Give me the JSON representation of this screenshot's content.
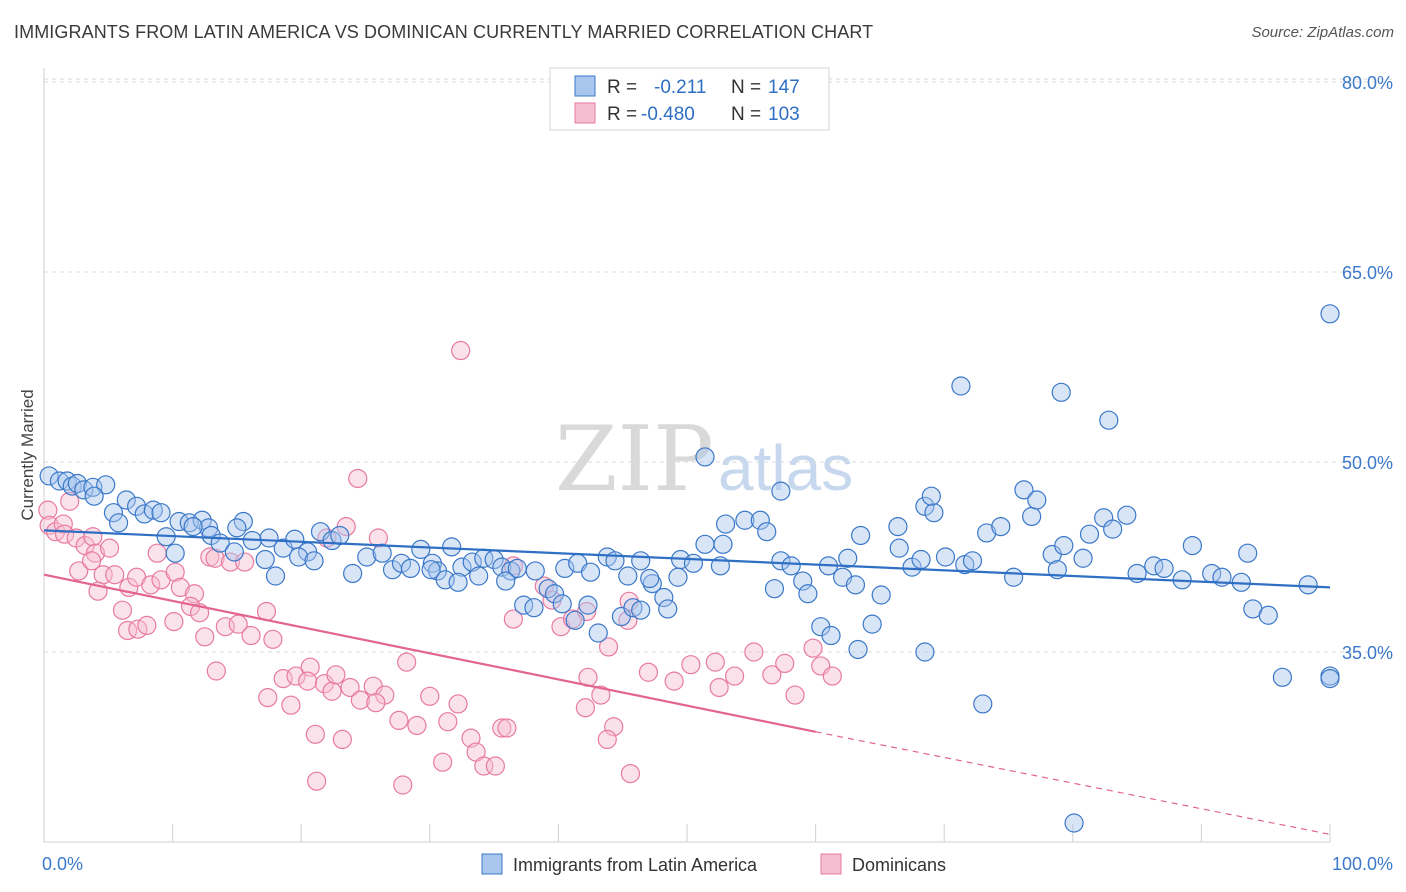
{
  "title": "IMMIGRANTS FROM LATIN AMERICA VS DOMINICAN CURRENTLY MARRIED CORRELATION CHART",
  "source": "Source: ZipAtlas.com",
  "watermark": {
    "zip": "ZIP",
    "atlas": "atlas"
  },
  "colors": {
    "blue_fill": "#a9c6ee",
    "blue_stroke": "#3b78c9",
    "blue_line": "#2f6fc4",
    "pink_fill": "#f6bfd1",
    "pink_stroke": "#e87aa0",
    "pink_line": "#e2648f",
    "grid": "#d8d8d8",
    "tick_text": "#3b78c9"
  },
  "legend": {
    "rows": [
      {
        "r_label": "R =",
        "r_value": "-0.211",
        "n_label": "N =",
        "n_value": "147"
      },
      {
        "r_label": "R =",
        "r_value": "-0.480",
        "n_label": "N =",
        "n_value": "103"
      }
    ]
  },
  "chart_data": {
    "type": "scatter",
    "title": "IMMIGRANTS FROM LATIN AMERICA VS DOMINICAN CURRENTLY MARRIED CORRELATION CHART",
    "xlabel": "",
    "ylabel": "Currently Married",
    "xlim": [
      0,
      100
    ],
    "ylim": [
      21,
      82
    ],
    "x_tick_labels": [
      "0.0%",
      "100.0%"
    ],
    "y_ticks": [
      35,
      50,
      65,
      80
    ],
    "y_tick_labels": [
      "35.0%",
      "50.0%",
      "65.0%",
      "80.0%"
    ],
    "legend_position": "bottom",
    "series": [
      {
        "name": "Immigrants from Latin America",
        "color": "blue",
        "r": -0.211,
        "n": 147,
        "trend": {
          "x0": 0,
          "y0": 44.6,
          "x1": 100,
          "y1": 40.1
        },
        "points": [
          [
            0.4,
            48.9
          ],
          [
            1.2,
            48.5
          ],
          [
            1.8,
            48.5
          ],
          [
            2.2,
            48.1
          ],
          [
            2.6,
            48.3
          ],
          [
            3.1,
            47.8
          ],
          [
            3.8,
            48.0
          ],
          [
            4.8,
            48.2
          ],
          [
            3.9,
            47.3
          ],
          [
            6.4,
            47.0
          ],
          [
            5.4,
            46.0
          ],
          [
            7.2,
            46.5
          ],
          [
            7.8,
            45.9
          ],
          [
            8.5,
            46.2
          ],
          [
            9.1,
            46.0
          ],
          [
            5.8,
            45.2
          ],
          [
            10.5,
            45.3
          ],
          [
            11.3,
            45.2
          ],
          [
            12.3,
            45.4
          ],
          [
            12.8,
            44.8
          ],
          [
            11.6,
            44.9
          ],
          [
            15.5,
            45.3
          ],
          [
            15.0,
            44.8
          ],
          [
            13.0,
            44.2
          ],
          [
            9.5,
            44.1
          ],
          [
            10.2,
            42.8
          ],
          [
            13.7,
            43.6
          ],
          [
            14.8,
            42.9
          ],
          [
            16.2,
            43.8
          ],
          [
            17.5,
            44.0
          ],
          [
            18.6,
            43.2
          ],
          [
            19.5,
            43.9
          ],
          [
            20.5,
            42.9
          ],
          [
            21.5,
            44.5
          ],
          [
            22.4,
            43.8
          ],
          [
            23.0,
            44.2
          ],
          [
            19.8,
            42.5
          ],
          [
            17.2,
            42.3
          ],
          [
            18.0,
            41.0
          ],
          [
            21.0,
            42.2
          ],
          [
            25.1,
            42.5
          ],
          [
            24.0,
            41.2
          ],
          [
            26.3,
            42.8
          ],
          [
            27.1,
            41.5
          ],
          [
            27.8,
            42.0
          ],
          [
            28.5,
            41.6
          ],
          [
            29.3,
            43.1
          ],
          [
            30.2,
            42.0
          ],
          [
            30.6,
            41.4
          ],
          [
            31.7,
            43.3
          ],
          [
            32.5,
            41.7
          ],
          [
            33.3,
            42.1
          ],
          [
            30.1,
            41.5
          ],
          [
            34.2,
            42.4
          ],
          [
            35.0,
            42.3
          ],
          [
            35.6,
            41.7
          ],
          [
            31.2,
            40.7
          ],
          [
            32.2,
            40.5
          ],
          [
            33.8,
            41.0
          ],
          [
            36.3,
            41.4
          ],
          [
            36.8,
            41.6
          ],
          [
            35.9,
            40.6
          ],
          [
            37.3,
            38.7
          ],
          [
            38.1,
            38.5
          ],
          [
            39.2,
            40.0
          ],
          [
            39.7,
            39.6
          ],
          [
            38.2,
            41.4
          ],
          [
            40.5,
            41.6
          ],
          [
            41.5,
            42.0
          ],
          [
            42.5,
            41.3
          ],
          [
            43.8,
            42.5
          ],
          [
            44.4,
            42.2
          ],
          [
            45.4,
            41.0
          ],
          [
            46.4,
            42.2
          ],
          [
            47.3,
            40.4
          ],
          [
            48.2,
            39.3
          ],
          [
            49.5,
            42.3
          ],
          [
            40.3,
            38.8
          ],
          [
            42.3,
            38.7
          ],
          [
            41.3,
            37.5
          ],
          [
            43.1,
            36.5
          ],
          [
            44.9,
            37.8
          ],
          [
            45.8,
            38.5
          ],
          [
            46.4,
            38.3
          ],
          [
            47.1,
            40.8
          ],
          [
            48.5,
            38.4
          ],
          [
            49.3,
            40.9
          ],
          [
            50.5,
            42.0
          ],
          [
            51.4,
            43.5
          ],
          [
            52.8,
            43.5
          ],
          [
            52.6,
            41.8
          ],
          [
            53.0,
            45.1
          ],
          [
            54.5,
            45.4
          ],
          [
            55.7,
            45.4
          ],
          [
            56.2,
            44.5
          ],
          [
            57.3,
            42.2
          ],
          [
            58.1,
            41.8
          ],
          [
            59.0,
            40.6
          ],
          [
            56.8,
            40.0
          ],
          [
            59.4,
            39.6
          ],
          [
            62.5,
            42.4
          ],
          [
            62.1,
            40.9
          ],
          [
            63.1,
            40.3
          ],
          [
            60.4,
            37.0
          ],
          [
            61.0,
            41.8
          ],
          [
            61.2,
            36.3
          ],
          [
            63.3,
            35.2
          ],
          [
            64.4,
            37.2
          ],
          [
            65.1,
            39.5
          ],
          [
            66.5,
            43.2
          ],
          [
            67.5,
            41.7
          ],
          [
            68.2,
            42.3
          ],
          [
            68.5,
            46.5
          ],
          [
            69.2,
            46.0
          ],
          [
            69.0,
            47.3
          ],
          [
            70.1,
            42.5
          ],
          [
            71.6,
            41.9
          ],
          [
            72.2,
            42.2
          ],
          [
            73.3,
            44.4
          ],
          [
            74.4,
            44.9
          ],
          [
            75.4,
            40.9
          ],
          [
            76.2,
            47.8
          ],
          [
            76.8,
            45.7
          ],
          [
            77.2,
            47.0
          ],
          [
            78.4,
            42.7
          ],
          [
            79.3,
            43.4
          ],
          [
            80.8,
            42.4
          ],
          [
            81.3,
            44.3
          ],
          [
            82.4,
            45.6
          ],
          [
            83.1,
            44.7
          ],
          [
            84.2,
            45.8
          ],
          [
            85.0,
            41.2
          ],
          [
            86.3,
            41.8
          ],
          [
            87.1,
            41.6
          ],
          [
            88.5,
            40.7
          ],
          [
            90.8,
            41.2
          ],
          [
            91.6,
            40.9
          ],
          [
            93.1,
            40.5
          ],
          [
            94.0,
            38.4
          ],
          [
            95.2,
            37.9
          ],
          [
            96.3,
            33.0
          ],
          [
            100.0,
            33.1
          ],
          [
            71.3,
            56.0
          ],
          [
            79.1,
            55.5
          ],
          [
            51.4,
            50.4
          ],
          [
            57.3,
            47.7
          ],
          [
            63.5,
            44.2
          ],
          [
            66.4,
            44.9
          ],
          [
            68.5,
            35.0
          ],
          [
            78.8,
            41.5
          ],
          [
            82.8,
            53.3
          ],
          [
            89.3,
            43.4
          ],
          [
            93.6,
            42.8
          ],
          [
            98.3,
            40.3
          ],
          [
            100.0,
            32.9
          ],
          [
            73.0,
            30.9
          ],
          [
            80.1,
            21.5
          ],
          [
            100.0,
            61.7
          ]
        ]
      },
      {
        "name": "Dominicans",
        "color": "pink",
        "r": -0.48,
        "n": 103,
        "trend_solid": {
          "x0": 0,
          "y0": 41.1,
          "x1": 60,
          "y1": 28.7
        },
        "trend_dashed": {
          "x0": 60,
          "y0": 28.7,
          "x1": 100,
          "y1": 20.6
        },
        "points": [
          [
            0.3,
            46.2
          ],
          [
            0.4,
            45.0
          ],
          [
            0.9,
            44.5
          ],
          [
            1.5,
            45.1
          ],
          [
            2.0,
            46.9
          ],
          [
            1.6,
            44.3
          ],
          [
            2.5,
            44.0
          ],
          [
            3.2,
            43.4
          ],
          [
            3.8,
            44.1
          ],
          [
            4.0,
            42.8
          ],
          [
            4.6,
            41.1
          ],
          [
            5.1,
            43.2
          ],
          [
            2.7,
            41.4
          ],
          [
            3.7,
            42.2
          ],
          [
            4.2,
            39.8
          ],
          [
            5.5,
            41.1
          ],
          [
            6.6,
            40.1
          ],
          [
            7.2,
            40.9
          ],
          [
            8.3,
            40.3
          ],
          [
            9.1,
            40.7
          ],
          [
            10.2,
            41.3
          ],
          [
            8.8,
            42.8
          ],
          [
            10.6,
            40.1
          ],
          [
            11.7,
            39.6
          ],
          [
            12.9,
            42.5
          ],
          [
            13.3,
            42.4
          ],
          [
            14.5,
            42.1
          ],
          [
            15.6,
            42.1
          ],
          [
            6.1,
            38.3
          ],
          [
            6.5,
            36.7
          ],
          [
            7.3,
            36.8
          ],
          [
            8.0,
            37.1
          ],
          [
            10.1,
            37.4
          ],
          [
            11.4,
            38.6
          ],
          [
            12.1,
            38.1
          ],
          [
            12.5,
            36.2
          ],
          [
            14.1,
            37.0
          ],
          [
            15.1,
            37.2
          ],
          [
            13.4,
            33.5
          ],
          [
            16.1,
            36.3
          ],
          [
            17.3,
            38.2
          ],
          [
            17.8,
            36.0
          ],
          [
            18.6,
            32.9
          ],
          [
            19.6,
            33.1
          ],
          [
            20.7,
            33.8
          ],
          [
            21.8,
            32.5
          ],
          [
            19.2,
            30.8
          ],
          [
            17.4,
            31.4
          ],
          [
            20.5,
            32.7
          ],
          [
            22.4,
            31.9
          ],
          [
            22.7,
            33.2
          ],
          [
            23.8,
            32.2
          ],
          [
            24.6,
            31.2
          ],
          [
            25.6,
            32.3
          ],
          [
            26.5,
            31.6
          ],
          [
            27.6,
            29.6
          ],
          [
            28.2,
            34.2
          ],
          [
            29.0,
            29.2
          ],
          [
            30.0,
            31.5
          ],
          [
            31.4,
            29.5
          ],
          [
            32.2,
            30.9
          ],
          [
            33.2,
            28.2
          ],
          [
            33.6,
            27.1
          ],
          [
            34.2,
            26.0
          ],
          [
            35.6,
            29.0
          ],
          [
            25.8,
            31.0
          ],
          [
            21.1,
            28.5
          ],
          [
            23.2,
            28.1
          ],
          [
            21.2,
            24.8
          ],
          [
            27.9,
            24.5
          ],
          [
            31.0,
            26.3
          ],
          [
            35.1,
            26.0
          ],
          [
            36.0,
            29.0
          ],
          [
            36.5,
            37.6
          ],
          [
            36.5,
            41.8
          ],
          [
            38.9,
            40.2
          ],
          [
            39.5,
            39.1
          ],
          [
            40.2,
            37.0
          ],
          [
            41.1,
            37.6
          ],
          [
            42.2,
            38.2
          ],
          [
            42.3,
            33.0
          ],
          [
            43.9,
            35.4
          ],
          [
            45.5,
            39.0
          ],
          [
            45.4,
            37.5
          ],
          [
            47.0,
            33.4
          ],
          [
            49.0,
            32.7
          ],
          [
            50.3,
            34.0
          ],
          [
            52.2,
            34.2
          ],
          [
            52.5,
            32.2
          ],
          [
            53.7,
            33.1
          ],
          [
            55.2,
            35.0
          ],
          [
            56.6,
            33.2
          ],
          [
            57.6,
            34.1
          ],
          [
            58.4,
            31.6
          ],
          [
            59.8,
            35.3
          ],
          [
            60.4,
            33.9
          ],
          [
            61.3,
            33.1
          ],
          [
            43.3,
            31.6
          ],
          [
            42.1,
            30.6
          ],
          [
            44.3,
            29.1
          ],
          [
            43.8,
            28.1
          ],
          [
            45.6,
            25.4
          ],
          [
            32.4,
            58.8
          ],
          [
            24.4,
            48.7
          ],
          [
            26.0,
            44.0
          ],
          [
            22.0,
            44.0
          ],
          [
            23.5,
            44.9
          ]
        ]
      }
    ]
  },
  "bottom_legend": {
    "items": [
      {
        "label": "Immigrants from Latin America"
      },
      {
        "label": "Dominicans"
      }
    ]
  }
}
